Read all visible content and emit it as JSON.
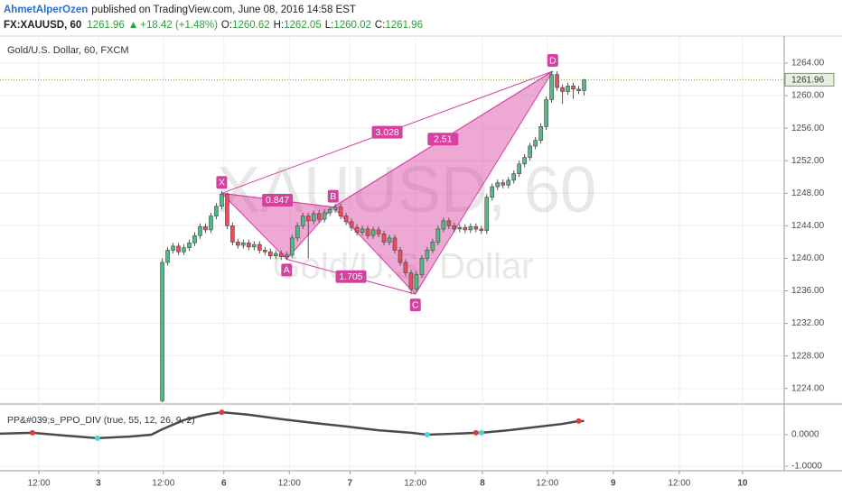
{
  "header": {
    "author": "AhmetAlperOzen",
    "published": "published on TradingView.com, June 08, 2016 14:58 EST",
    "symbol": "FX:XAUUSD, 60",
    "price": "1261.96",
    "arrow": "▲",
    "change": "+18.42 (+1.48%)",
    "ohlc": [
      {
        "label": "O:",
        "value": "1260.62"
      },
      {
        "label": "H:",
        "value": "1262.05"
      },
      {
        "label": "L:",
        "value": "1260.02"
      },
      {
        "label": "C:",
        "value": "1261.96"
      }
    ]
  },
  "chart_data": [
    {
      "type": "candlestick",
      "title": "Gold/U.S. Dollar, 60, FXCM",
      "watermark": [
        "XAUUSD, 60",
        "Gold/U.S. Dollar"
      ],
      "xlim": [
        0,
        145
      ],
      "xticks": [
        {
          "value": 7.2,
          "label": "12:00"
        },
        {
          "value": 18.2,
          "label": "3"
        },
        {
          "value": 30.2,
          "label": "12:00"
        },
        {
          "value": 41.4,
          "label": "6"
        },
        {
          "value": 53.5,
          "label": "12:00"
        },
        {
          "value": 64.7,
          "label": "7"
        },
        {
          "value": 76.8,
          "label": "12:00"
        },
        {
          "value": 89.2,
          "label": "8"
        },
        {
          "value": 101.2,
          "label": "12:00"
        },
        {
          "value": 113.4,
          "label": "9"
        },
        {
          "value": 125.6,
          "label": "12:00"
        },
        {
          "value": 137.3,
          "label": "10"
        }
      ],
      "ylim": [
        1222.2,
        1267.1
      ],
      "yticks": [
        {
          "value": 1224,
          "label": "1224.00"
        },
        {
          "value": 1228,
          "label": "1228.00"
        },
        {
          "value": 1232,
          "label": "1232.00"
        },
        {
          "value": 1236,
          "label": "1236.00"
        },
        {
          "value": 1240,
          "label": "1240.00"
        },
        {
          "value": 1244,
          "label": "1244.00"
        },
        {
          "value": 1248,
          "label": "1248.00"
        },
        {
          "value": 1252,
          "label": "1252.00"
        },
        {
          "value": 1256,
          "label": "1256.00"
        },
        {
          "value": 1260,
          "label": "1260.00"
        },
        {
          "value": 1264,
          "label": "1264.00"
        }
      ],
      "grid": true,
      "up_color": "#53b987",
      "down_color": "#eb4d5c",
      "last_price": 1261.96,
      "last_color": "#6aa84f",
      "x": [
        30,
        31,
        32,
        33,
        34,
        35,
        36,
        37,
        38,
        39,
        40,
        41,
        42,
        43,
        44,
        45,
        46,
        47,
        48,
        49,
        50,
        51,
        52,
        53,
        54,
        55,
        56,
        57,
        58,
        59,
        60,
        61,
        62,
        63,
        64,
        65,
        66,
        67,
        68,
        69,
        70,
        71,
        72,
        73,
        74,
        75,
        76,
        77,
        78,
        79,
        80,
        81,
        82,
        83,
        84,
        85,
        86,
        87,
        88,
        89,
        90,
        91,
        92,
        93,
        94,
        95,
        96,
        97,
        98,
        99,
        100,
        101,
        102,
        103,
        104,
        105,
        106,
        107,
        108
      ],
      "open": [
        1222.5,
        1239.5,
        1241.0,
        1241.5,
        1240.8,
        1241.3,
        1241.9,
        1242.8,
        1243.9,
        1243.5,
        1245.2,
        1246.4,
        1247.9,
        1244.0,
        1242.0,
        1241.6,
        1241.9,
        1241.4,
        1241.7,
        1241.0,
        1240.8,
        1240.3,
        1240.6,
        1240.2,
        1240.4,
        1242.5,
        1244.0,
        1245.2,
        1244.6,
        1245.5,
        1244.8,
        1245.6,
        1246.0,
        1246.3,
        1245.2,
        1244.5,
        1243.8,
        1243.2,
        1243.6,
        1242.8,
        1243.5,
        1243.0,
        1242.0,
        1242.5,
        1241.0,
        1239.5,
        1238.2,
        1236.2,
        1238.0,
        1240.0,
        1241.0,
        1242.0,
        1243.6,
        1244.6,
        1244.0,
        1243.6,
        1243.8,
        1243.5,
        1243.9,
        1243.6,
        1243.4,
        1247.5,
        1248.8,
        1249.3,
        1249.0,
        1249.6,
        1250.4,
        1251.6,
        1252.4,
        1253.8,
        1254.5,
        1256.2,
        1259.5,
        1262.6,
        1261.0,
        1260.5,
        1261.2,
        1260.8,
        1260.62
      ],
      "high": [
        1240.0,
        1241.4,
        1241.9,
        1241.9,
        1241.7,
        1242.3,
        1243.2,
        1244.3,
        1244.3,
        1245.6,
        1246.8,
        1248.3,
        1248.1,
        1244.4,
        1242.4,
        1242.3,
        1242.3,
        1242.1,
        1242.1,
        1241.4,
        1241.2,
        1241.0,
        1241.0,
        1240.8,
        1242.9,
        1244.4,
        1245.6,
        1245.6,
        1245.9,
        1245.9,
        1246.0,
        1246.4,
        1246.7,
        1246.7,
        1245.6,
        1244.9,
        1244.2,
        1244.0,
        1244.0,
        1243.9,
        1243.9,
        1243.4,
        1242.9,
        1242.9,
        1241.4,
        1239.9,
        1238.6,
        1238.4,
        1240.4,
        1241.4,
        1242.4,
        1244.0,
        1245.0,
        1245.0,
        1244.4,
        1244.2,
        1244.2,
        1244.3,
        1244.3,
        1244.0,
        1247.9,
        1249.2,
        1249.7,
        1249.7,
        1250.0,
        1250.8,
        1252.0,
        1252.8,
        1254.2,
        1254.9,
        1256.6,
        1259.9,
        1263.0,
        1263.0,
        1261.4,
        1261.6,
        1261.6,
        1261.2,
        1262.05
      ],
      "low": [
        1222.3,
        1239.1,
        1240.6,
        1240.4,
        1240.4,
        1240.9,
        1241.5,
        1242.4,
        1243.1,
        1243.1,
        1244.8,
        1246.0,
        1243.6,
        1241.6,
        1241.2,
        1241.2,
        1241.0,
        1241.0,
        1240.6,
        1240.4,
        1239.9,
        1239.9,
        1239.8,
        1239.8,
        1240.0,
        1242.1,
        1243.6,
        1240.0,
        1244.2,
        1244.4,
        1244.4,
        1245.2,
        1245.6,
        1244.8,
        1244.1,
        1243.4,
        1242.8,
        1242.8,
        1242.4,
        1242.4,
        1242.6,
        1241.6,
        1241.6,
        1240.6,
        1239.1,
        1237.8,
        1235.6,
        1235.8,
        1237.6,
        1239.6,
        1240.6,
        1241.6,
        1243.2,
        1243.6,
        1243.2,
        1243.2,
        1243.1,
        1243.1,
        1243.2,
        1243.0,
        1243.0,
        1247.1,
        1248.4,
        1248.6,
        1248.6,
        1249.2,
        1250.0,
        1251.2,
        1252.0,
        1253.4,
        1254.1,
        1255.8,
        1259.1,
        1260.6,
        1259.0,
        1260.1,
        1259.6,
        1260.2,
        1260.02
      ],
      "close": [
        1239.5,
        1241.0,
        1241.5,
        1240.8,
        1241.3,
        1241.9,
        1242.8,
        1243.9,
        1243.5,
        1245.2,
        1246.4,
        1247.9,
        1244.0,
        1242.0,
        1241.6,
        1241.9,
        1241.4,
        1241.7,
        1241.0,
        1240.8,
        1240.3,
        1240.6,
        1240.2,
        1240.4,
        1242.5,
        1244.0,
        1245.2,
        1244.6,
        1245.5,
        1244.8,
        1245.6,
        1246.0,
        1246.3,
        1245.2,
        1244.5,
        1243.8,
        1243.2,
        1243.6,
        1242.8,
        1243.5,
        1243.0,
        1242.0,
        1242.5,
        1241.0,
        1239.5,
        1238.2,
        1236.2,
        1238.0,
        1240.0,
        1241.0,
        1242.0,
        1243.6,
        1244.6,
        1244.0,
        1243.6,
        1243.8,
        1243.5,
        1243.9,
        1243.6,
        1243.4,
        1247.5,
        1248.8,
        1249.3,
        1249.0,
        1249.6,
        1250.4,
        1251.6,
        1252.4,
        1253.8,
        1254.5,
        1256.2,
        1259.5,
        1262.6,
        1261.0,
        1260.5,
        1261.2,
        1260.8,
        1260.6,
        1261.96
      ],
      "pattern": {
        "color": "#d6409f",
        "points": [
          {
            "label": "X",
            "x": 41,
            "y": 1248.0
          },
          {
            "label": "A",
            "x": 53,
            "y": 1239.9
          },
          {
            "label": "B",
            "x": 61.6,
            "y": 1246.3
          },
          {
            "label": "C",
            "x": 76.8,
            "y": 1235.6
          },
          {
            "label": "D",
            "x": 102.2,
            "y": 1263.0
          }
        ],
        "ratios": [
          0.847,
          1.705,
          2.51,
          3.028
        ]
      }
    },
    {
      "type": "line",
      "title": "PP&#039;s_PPO_DIV (true, 55, 12, 26, 9, 2)",
      "ylim": [
        -1.14,
        0.94
      ],
      "yticks": [
        {
          "value": 0,
          "label": "0.0000"
        },
        {
          "value": -1,
          "label": "-1.0000"
        }
      ],
      "color": "#4a4a4a",
      "x": [
        0,
        6,
        12,
        18,
        24,
        28,
        30,
        34,
        38,
        41,
        46,
        52,
        58,
        64,
        70,
        76,
        79,
        84,
        88,
        89,
        94,
        100,
        104,
        107,
        108
      ],
      "values": [
        0.03,
        0.06,
        -0.03,
        -0.11,
        -0.06,
        0.0,
        0.17,
        0.46,
        0.63,
        0.71,
        0.63,
        0.49,
        0.37,
        0.26,
        0.14,
        0.06,
        0.0,
        0.03,
        0.06,
        0.06,
        0.14,
        0.26,
        0.34,
        0.43,
        0.43
      ],
      "signals": [
        {
          "color": "#e53935",
          "x": [
            6,
            41,
            88,
            107
          ],
          "values": [
            0.06,
            0.71,
            0.06,
            0.43
          ]
        },
        {
          "color": "#4dd0e1",
          "x": [
            18,
            79,
            89
          ],
          "values": [
            -0.11,
            0.0,
            0.06
          ]
        }
      ]
    }
  ]
}
